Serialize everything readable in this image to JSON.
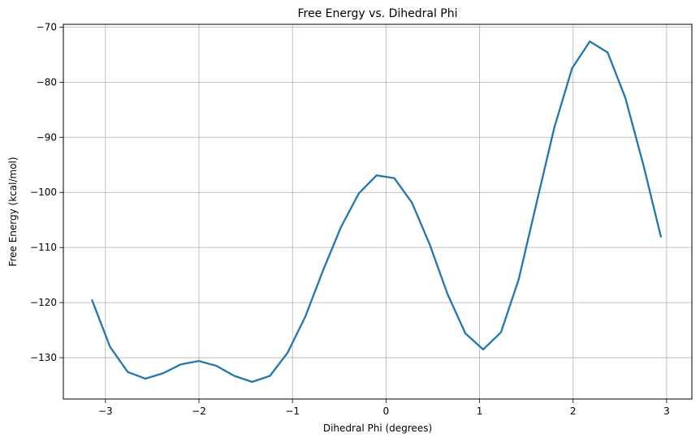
{
  "chart_data": {
    "type": "line",
    "title": "Free Energy vs. Dihedral Phi",
    "xlabel": "Dihedral Phi (degrees)",
    "ylabel": "Free Energy (kcal/mol)",
    "xlim": [
      -3.45,
      3.27
    ],
    "ylim": [
      -137.5,
      -69.5
    ],
    "xticks": [
      -3,
      -2,
      -1,
      0,
      1,
      2,
      3
    ],
    "xtick_labels": [
      "−3",
      "−2",
      "−1",
      "0",
      "1",
      "2",
      "3"
    ],
    "yticks": [
      -130,
      -120,
      -110,
      -100,
      -90,
      -80,
      -70
    ],
    "ytick_labels": [
      "−130",
      "−120",
      "−110",
      "−100",
      "−90",
      "−80",
      "−70"
    ],
    "grid": true,
    "series": [
      {
        "color": "#1f77b4",
        "x": [
          -3.1416,
          -2.9516,
          -2.7616,
          -2.5716,
          -2.3816,
          -2.1916,
          -2.0016,
          -1.8116,
          -1.6216,
          -1.4316,
          -1.2416,
          -1.0516,
          -0.8616,
          -0.6716,
          -0.4816,
          -0.2916,
          -0.1016,
          0.0884,
          0.2784,
          0.4684,
          0.6584,
          0.8484,
          1.0384,
          1.2284,
          1.4184,
          1.6084,
          1.7984,
          1.9884,
          2.1784,
          2.3684,
          2.5584,
          2.7484,
          2.9384
        ],
        "y": [
          -119.6,
          -128.0,
          -132.6,
          -133.8,
          -132.8,
          -131.2,
          -130.6,
          -131.5,
          -133.3,
          -134.4,
          -133.3,
          -129.1,
          -122.5,
          -114.1,
          -106.3,
          -100.2,
          -96.9,
          -97.4,
          -101.9,
          -109.5,
          -118.5,
          -125.6,
          -128.5,
          -125.4,
          -115.8,
          -102.0,
          -88.3,
          -77.5,
          -72.6,
          -74.6,
          -82.8,
          -94.8,
          -108.0
        ]
      }
    ]
  }
}
